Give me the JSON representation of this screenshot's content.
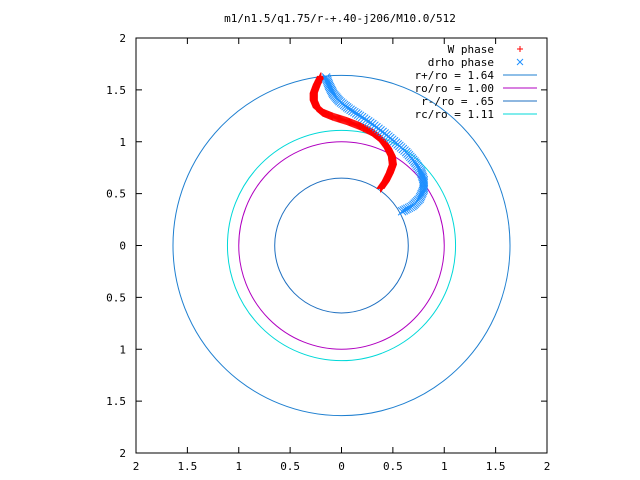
{
  "chart_data": {
    "type": "scatter",
    "title": "m1/n1.5/q1.75/r-+.40-j206/M10.0/512",
    "xlim": [
      -2,
      2
    ],
    "ylim": [
      -2,
      2
    ],
    "x_ticks": [
      {
        "value": -2,
        "label": "2"
      },
      {
        "value": -1.5,
        "label": "1.5"
      },
      {
        "value": -1,
        "label": "1"
      },
      {
        "value": -0.5,
        "label": "0.5"
      },
      {
        "value": 0,
        "label": "0"
      },
      {
        "value": 0.5,
        "label": "0.5"
      },
      {
        "value": 1,
        "label": "1"
      },
      {
        "value": 1.5,
        "label": "1.5"
      },
      {
        "value": 2,
        "label": "2"
      }
    ],
    "y_ticks": [
      {
        "value": 2,
        "label": "2"
      },
      {
        "value": 1.5,
        "label": "1.5"
      },
      {
        "value": 1,
        "label": "1"
      },
      {
        "value": 0.5,
        "label": "0.5"
      },
      {
        "value": 0,
        "label": "0"
      },
      {
        "value": -0.5,
        "label": "0.5"
      },
      {
        "value": -1,
        "label": "1"
      },
      {
        "value": -1.5,
        "label": "1.5"
      },
      {
        "value": -2,
        "label": "2"
      }
    ],
    "grid": false,
    "legend_position": "top-right",
    "series": [
      {
        "name": "W phase",
        "marker": "plus",
        "color": "#ff0000",
        "points": [
          [
            -0.2,
            1.63
          ],
          [
            -0.24,
            1.55
          ],
          [
            -0.27,
            1.47
          ],
          [
            -0.27,
            1.4
          ],
          [
            -0.24,
            1.33
          ],
          [
            -0.18,
            1.28
          ],
          [
            -0.08,
            1.24
          ],
          [
            0.05,
            1.2
          ],
          [
            0.18,
            1.15
          ],
          [
            0.3,
            1.09
          ],
          [
            0.39,
            1.02
          ],
          [
            0.45,
            0.94
          ],
          [
            0.49,
            0.86
          ],
          [
            0.5,
            0.78
          ],
          [
            0.47,
            0.7
          ],
          [
            0.43,
            0.62
          ],
          [
            0.38,
            0.55
          ]
        ]
      },
      {
        "name": "drho phase",
        "marker": "cross",
        "color": "#1e90ff",
        "points": [
          [
            -0.15,
            1.62
          ],
          [
            -0.12,
            1.54
          ],
          [
            -0.08,
            1.46
          ],
          [
            -0.02,
            1.39
          ],
          [
            0.07,
            1.32
          ],
          [
            0.18,
            1.25
          ],
          [
            0.3,
            1.17
          ],
          [
            0.42,
            1.08
          ],
          [
            0.53,
            0.99
          ],
          [
            0.63,
            0.9
          ],
          [
            0.71,
            0.81
          ],
          [
            0.77,
            0.72
          ],
          [
            0.8,
            0.63
          ],
          [
            0.8,
            0.54
          ],
          [
            0.76,
            0.45
          ],
          [
            0.69,
            0.38
          ],
          [
            0.59,
            0.33
          ]
        ]
      },
      {
        "name": "r+/ro = 1.64",
        "type": "circle",
        "radius": 1.64,
        "color": "#1e7fd0"
      },
      {
        "name": "ro/ro = 1.00",
        "type": "circle",
        "radius": 1.0,
        "color": "#b000c0"
      },
      {
        "name": "r-/ro = .65",
        "type": "circle",
        "radius": 0.65,
        "color": "#1e6fc0"
      },
      {
        "name": "rc/ro = 1.11",
        "type": "circle",
        "radius": 1.11,
        "color": "#00d8d8"
      }
    ]
  }
}
